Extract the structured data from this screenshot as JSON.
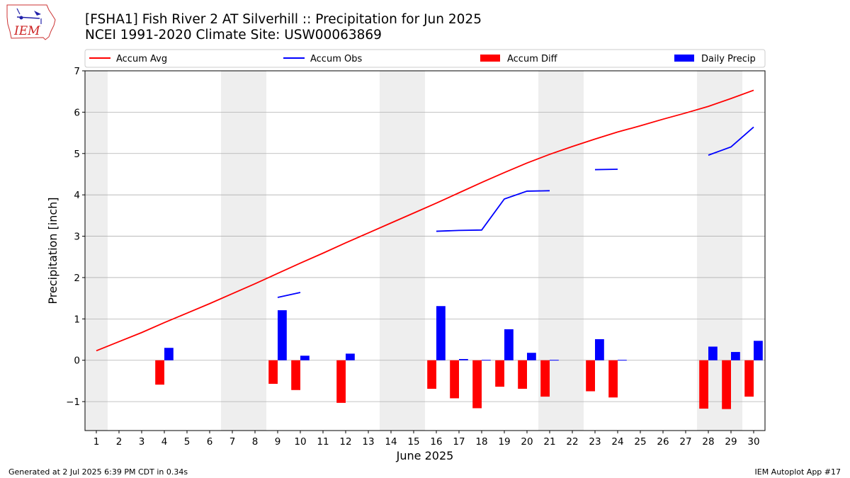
{
  "header": {
    "title_line1": "[FSHA1] Fish River 2 AT Silverhill :: Precipitation for Jun 2025",
    "title_line2": "NCEI 1991-2020 Climate Site: USW00063869"
  },
  "logo": {
    "text": "IEM"
  },
  "footer": {
    "generated": "Generated at 2 Jul 2025 6:39 PM CDT in 0.34s",
    "app": "IEM Autoplot App #17"
  },
  "chart_data": {
    "type": "bar",
    "xlabel": "June 2025",
    "ylabel": "Precipitation [inch]",
    "ylim": [
      -1.7,
      7.0
    ],
    "xlim": [
      0.5,
      30.5
    ],
    "yticks": [
      -1,
      0,
      1,
      2,
      3,
      4,
      5,
      6,
      7
    ],
    "yticklabels": [
      "−1",
      "0",
      "1",
      "2",
      "3",
      "4",
      "5",
      "6",
      "7"
    ],
    "days": [
      1,
      2,
      3,
      4,
      5,
      6,
      7,
      8,
      9,
      10,
      11,
      12,
      13,
      14,
      15,
      16,
      17,
      18,
      19,
      20,
      21,
      22,
      23,
      24,
      25,
      26,
      27,
      28,
      29,
      30
    ],
    "grid": true,
    "weekend_shading": [
      [
        0.5,
        1.5
      ],
      [
        6.5,
        8.5
      ],
      [
        13.5,
        15.5
      ],
      [
        20.5,
        22.5
      ],
      [
        27.5,
        29.5
      ]
    ],
    "legend": {
      "placement": "top",
      "entries": [
        {
          "label": "Accum Avg",
          "kind": "line",
          "color": "#ff0000"
        },
        {
          "label": "Accum Obs",
          "kind": "line",
          "color": "#0000ff"
        },
        {
          "label": "Accum Diff",
          "kind": "bar",
          "color": "#ff0000"
        },
        {
          "label": "Daily Precip",
          "kind": "bar",
          "color": "#0000ff"
        }
      ]
    },
    "series": [
      {
        "name": "Accum Avg",
        "type": "line",
        "color": "#ff0000",
        "x": [
          1,
          2,
          3,
          4,
          5,
          6,
          7,
          8,
          9,
          10,
          11,
          12,
          13,
          14,
          15,
          16,
          17,
          18,
          19,
          20,
          21,
          22,
          23,
          24,
          25,
          26,
          27,
          28,
          29,
          30
        ],
        "values": [
          0.23,
          0.45,
          0.67,
          0.91,
          1.14,
          1.37,
          1.61,
          1.85,
          2.1,
          2.35,
          2.59,
          2.84,
          3.08,
          3.32,
          3.56,
          3.8,
          4.05,
          4.3,
          4.54,
          4.77,
          4.98,
          5.17,
          5.35,
          5.52,
          5.67,
          5.83,
          5.98,
          6.14,
          6.33,
          6.53
        ]
      },
      {
        "name": "Accum Obs",
        "type": "line",
        "color": "#0000ff",
        "segments": [
          {
            "x": [
              9,
              10
            ],
            "values": [
              1.52,
              1.64
            ]
          },
          {
            "x": [
              16,
              17,
              18,
              19,
              20,
              21
            ],
            "values": [
              3.12,
              3.14,
              3.15,
              3.9,
              4.09,
              4.1
            ]
          },
          {
            "x": [
              23,
              24
            ],
            "values": [
              4.61,
              4.62
            ]
          },
          {
            "x": [
              28,
              29,
              30
            ],
            "values": [
              4.96,
              5.16,
              5.64
            ]
          }
        ]
      },
      {
        "name": "Accum Diff",
        "type": "bar",
        "color": "#ff0000",
        "x": [
          4,
          9,
          10,
          12,
          16,
          17,
          18,
          19,
          20,
          21,
          23,
          24,
          28,
          29,
          30
        ],
        "values": [
          -0.59,
          -0.57,
          -0.72,
          -1.03,
          -0.69,
          -0.92,
          -1.16,
          -0.64,
          -0.69,
          -0.88,
          -0.75,
          -0.9,
          -1.17,
          -1.18,
          -0.88
        ]
      },
      {
        "name": "Daily Precip",
        "type": "bar",
        "color": "#0000ff",
        "x": [
          4,
          9,
          10,
          12,
          16,
          17,
          18,
          19,
          20,
          21,
          23,
          24,
          28,
          29,
          30
        ],
        "values": [
          0.3,
          1.21,
          0.11,
          0.16,
          1.31,
          0.03,
          0.01,
          0.75,
          0.18,
          0.01,
          0.51,
          0.01,
          0.33,
          0.2,
          0.47
        ]
      }
    ]
  }
}
